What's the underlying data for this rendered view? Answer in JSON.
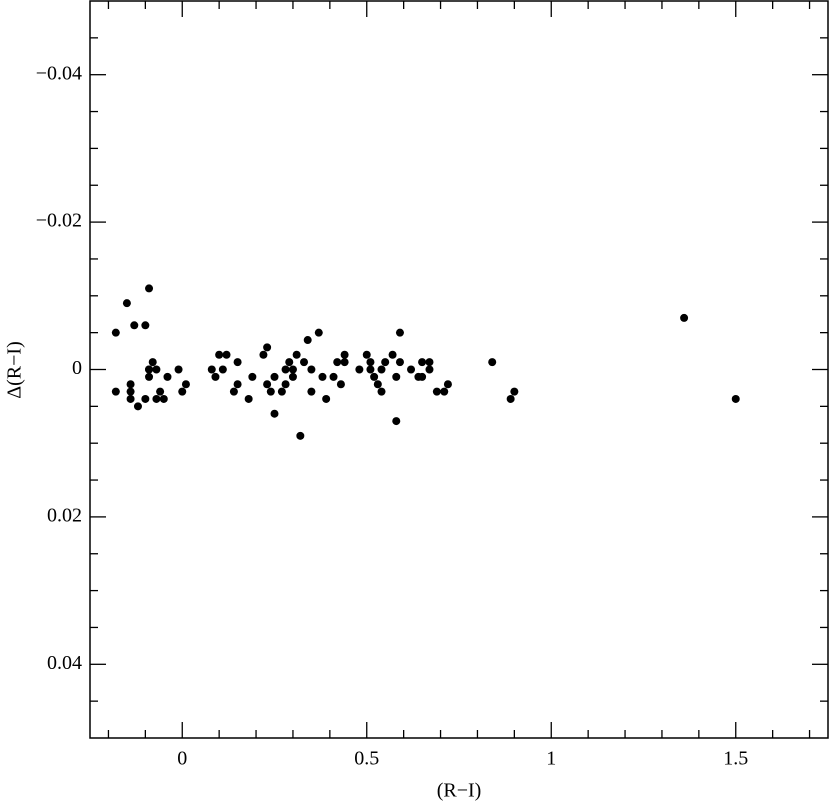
{
  "chart_data": {
    "type": "scatter",
    "xlabel": "(R−I)",
    "ylabel": "Δ(R−I)",
    "x": [
      -0.18,
      -0.15,
      -0.13,
      -0.18,
      -0.14,
      -0.14,
      -0.14,
      -0.12,
      -0.1,
      -0.09,
      -0.1,
      -0.09,
      -0.09,
      -0.08,
      -0.09,
      -0.07,
      -0.07,
      -0.06,
      -0.05,
      -0.04,
      -0.01,
      0.0,
      0.01,
      0.08,
      0.09,
      0.1,
      0.11,
      0.12,
      0.14,
      0.15,
      0.15,
      0.18,
      0.19,
      0.22,
      0.23,
      0.23,
      0.24,
      0.25,
      0.25,
      0.27,
      0.28,
      0.28,
      0.29,
      0.3,
      0.3,
      0.31,
      0.32,
      0.33,
      0.34,
      0.35,
      0.35,
      0.37,
      0.38,
      0.39,
      0.41,
      0.42,
      0.43,
      0.44,
      0.44,
      0.48,
      0.5,
      0.51,
      0.51,
      0.52,
      0.53,
      0.54,
      0.54,
      0.55,
      0.57,
      0.58,
      0.58,
      0.59,
      0.59,
      0.62,
      0.64,
      0.65,
      0.65,
      0.67,
      0.67,
      0.69,
      0.71,
      0.72,
      0.84,
      0.89,
      0.9,
      1.36,
      1.5
    ],
    "values": [
      -0.005,
      -0.009,
      -0.006,
      0.003,
      0.002,
      0.003,
      0.004,
      0.005,
      -0.006,
      -0.011,
      0.004,
      0,
      0.001,
      -0.001,
      0,
      0,
      0.004,
      0.003,
      0.004,
      0.001,
      0,
      0.003,
      0.002,
      0,
      0.001,
      -0.002,
      0,
      -0.002,
      0.003,
      -0.001,
      0.002,
      0.004,
      0.001,
      -0.002,
      0.002,
      -0.003,
      0.003,
      0.001,
      0.006,
      0.003,
      0,
      0.002,
      -0.001,
      0.001,
      0,
      -0.002,
      0.009,
      -0.001,
      -0.004,
      0,
      0.003,
      -0.005,
      0.001,
      0.004,
      0.001,
      -0.001,
      0.002,
      -0.002,
      -0.001,
      0,
      -0.002,
      -0.001,
      0,
      0.001,
      0.002,
      0,
      0.003,
      -0.001,
      -0.002,
      0.001,
      0.007,
      -0.005,
      -0.001,
      0,
      0.001,
      -0.001,
      0.001,
      -0.001,
      0,
      0.003,
      0.003,
      0.002,
      -0.001,
      0.004,
      0.003,
      -0.007,
      0.004
    ],
    "color": "#000000",
    "xlim": [
      -0.25,
      1.75
    ],
    "ylim": [
      -0.05,
      0.05
    ],
    "y_inverted": true,
    "xticks": [
      0,
      0.5,
      1,
      1.5
    ],
    "yticks": [
      {
        "value": -0.04,
        "label": "−0.04"
      },
      {
        "value": -0.02,
        "label": "−0.02"
      },
      0,
      0.02,
      0.04
    ],
    "xticks_minor": [
      -0.2,
      -0.1,
      0.1,
      0.2,
      0.3,
      0.4,
      0.6,
      0.7,
      0.8,
      0.9,
      1.1,
      1.2,
      1.3,
      1.4,
      1.6,
      1.7
    ],
    "yticks_minor": [
      -0.045,
      -0.035,
      -0.03,
      -0.025,
      -0.015,
      -0.01,
      -0.005,
      0.005,
      0.01,
      0.015,
      0.025,
      0.03,
      0.035,
      0.045
    ]
  }
}
